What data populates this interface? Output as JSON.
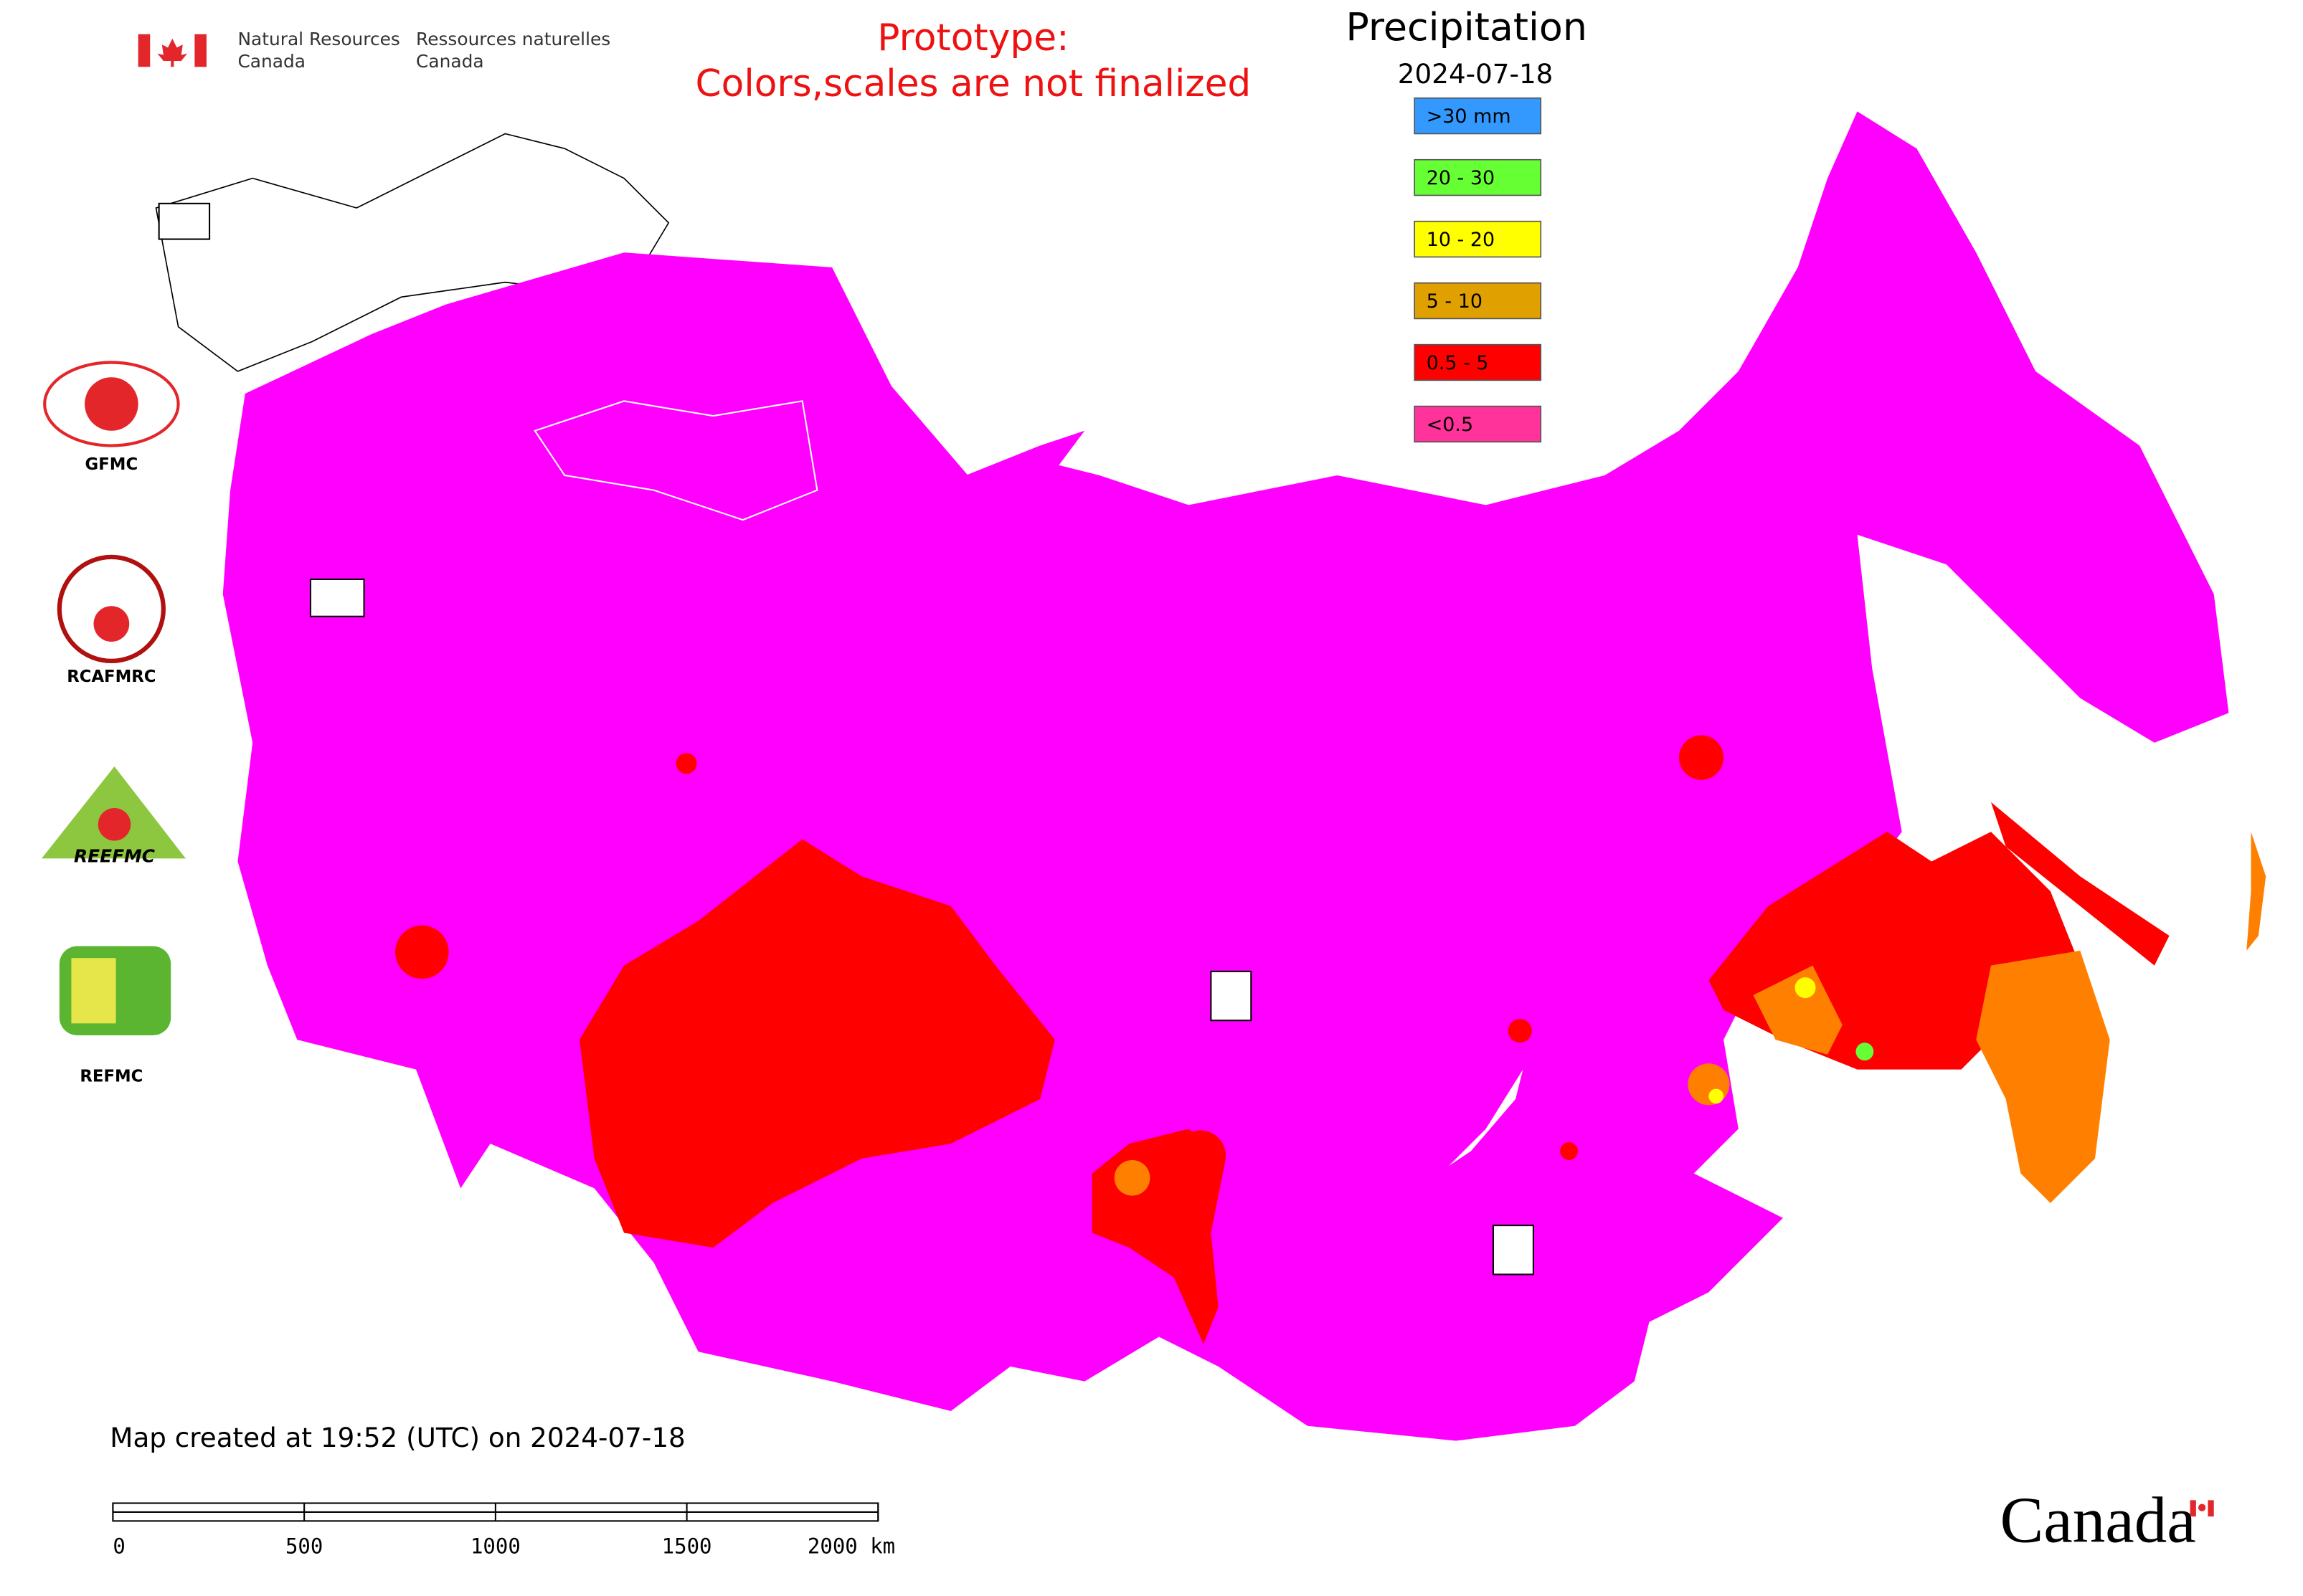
{
  "header": {
    "agency_en": [
      "Natural Resources",
      "Canada"
    ],
    "agency_fr": [
      "Ressources naturelles",
      "Canada"
    ],
    "prototype_note": [
      "Prototype:",
      "Colors,scales are not finalized"
    ]
  },
  "legend": {
    "title": "Precipitation",
    "date": "2024-07-18",
    "items": [
      {
        "label": ">30 mm",
        "color": "#3399ff"
      },
      {
        "label": "20 - 30",
        "color": "#66ff33"
      },
      {
        "label": "10 - 20",
        "color": "#ffff00"
      },
      {
        "label": "5 - 10",
        "color": "#e0a000"
      },
      {
        "label": "0.5 - 5",
        "color": "#ff0000"
      },
      {
        "label": "<0.5",
        "color": "#ff3399"
      }
    ]
  },
  "logos": [
    {
      "label": "GFMC"
    },
    {
      "label": "RCAFMRC"
    },
    {
      "label": "REEFMC"
    },
    {
      "label": "REFMC"
    }
  ],
  "footer": {
    "created": "Map created at 19:52 (UTC) on 2024-07-18",
    "scale_labels": [
      "0",
      "500",
      "1000",
      "1500",
      "2000 km"
    ],
    "wordmark": "Canada"
  }
}
